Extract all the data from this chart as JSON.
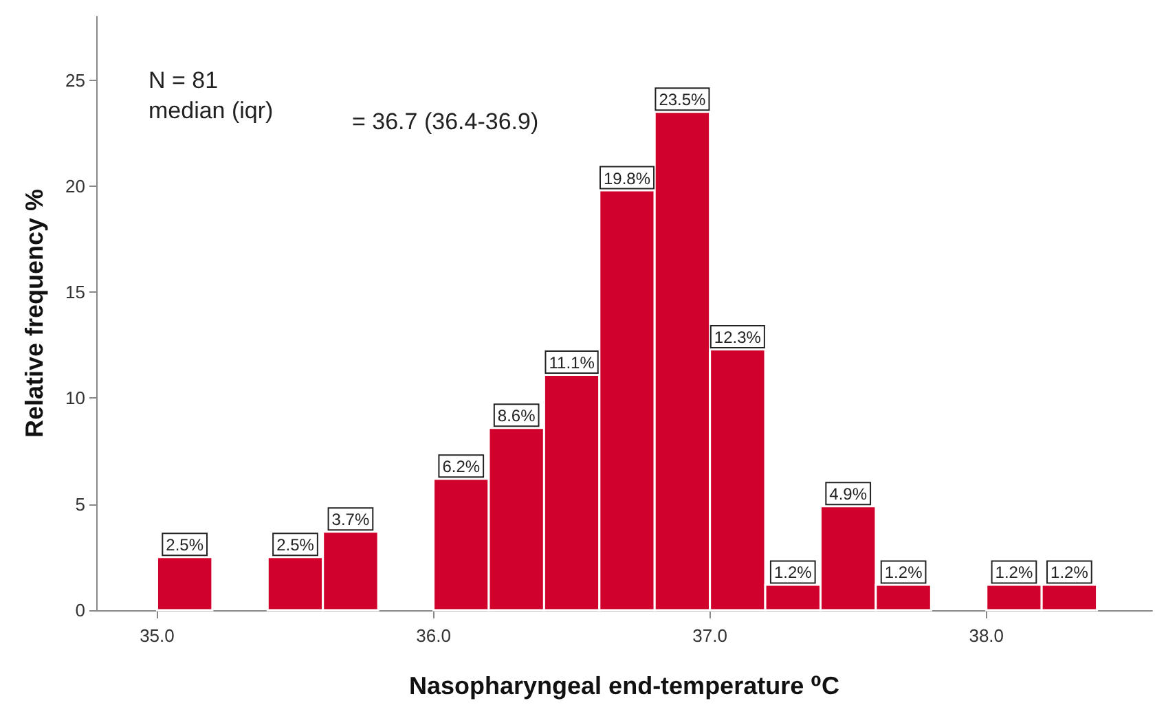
{
  "chart_data": {
    "type": "histogram",
    "xlabel": "Nasopharyngeal end-temperature ⁰C",
    "ylabel": "Relative frequency %",
    "annotations": [
      "N = 81",
      "median (iqr)",
      "= 36.7 (36.4-36.9)"
    ],
    "bins": [
      35.0,
      35.2,
      35.4,
      35.6,
      35.8,
      36.0,
      36.2,
      36.4,
      36.6,
      36.8,
      37.0,
      37.2,
      37.4,
      37.6,
      37.8,
      38.0,
      38.2,
      38.4
    ],
    "values": [
      2.5,
      0,
      2.5,
      3.7,
      0,
      6.2,
      8.6,
      11.1,
      19.8,
      23.5,
      12.3,
      1.2,
      4.9,
      1.2,
      0,
      1.2,
      1.2
    ],
    "value_labels": [
      "2.5%",
      null,
      "2.5%",
      "3.7%",
      null,
      "6.2%",
      "8.6%",
      "11.1%",
      "19.8%",
      "23.5%",
      "12.3%",
      "1.2%",
      "4.9%",
      "1.2%",
      null,
      "1.2%",
      "1.2%"
    ],
    "color": "#d0022b",
    "xlim": [
      34.78,
      38.6
    ],
    "xticks": [
      {
        "value": 35,
        "label": "35.0"
      },
      {
        "value": 36,
        "label": "36.0"
      },
      {
        "value": 37,
        "label": "37.0"
      },
      {
        "value": 38,
        "label": "38.0"
      }
    ],
    "ylim": [
      0,
      28
    ],
    "yticks": [
      0,
      5,
      10,
      15,
      20,
      25
    ],
    "grid": false
  }
}
